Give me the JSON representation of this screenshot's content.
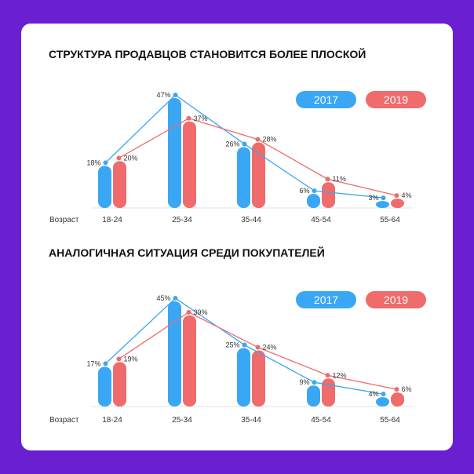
{
  "colors": {
    "background": "#6a1fd1",
    "card": "#ffffff",
    "series_2017": "#3aa7f5",
    "series_2019": "#f06b6b"
  },
  "chart_data": [
    {
      "type": "bar",
      "title": "СТРУКТУРА ПРОДАВЦОВ СТАНОВИТСЯ БОЛЕЕ ПЛОСКОЙ",
      "xlabel": "Возраст",
      "categories": [
        "18-24",
        "25-34",
        "35-44",
        "45-54",
        "55-64"
      ],
      "legend_position": "top-right",
      "grid": false,
      "ylim": [
        0,
        47
      ],
      "series": [
        {
          "name": "2017",
          "color": "#3aa7f5",
          "values": [
            18,
            47,
            26,
            6,
            3
          ],
          "labels": [
            "18%",
            "47%",
            "26%",
            "6%",
            "3%"
          ]
        },
        {
          "name": "2019",
          "color": "#f06b6b",
          "values": [
            20,
            37,
            28,
            11,
            4
          ],
          "labels": [
            "20%",
            "37%",
            "28%",
            "11%",
            "4%"
          ]
        }
      ]
    },
    {
      "type": "bar",
      "title": "АНАЛОГИЧНАЯ СИТУАЦИЯ СРЕДИ ПОКУПАТЕЛЕЙ",
      "xlabel": "Возраст",
      "categories": [
        "18-24",
        "25-34",
        "35-44",
        "45-54",
        "55-64"
      ],
      "legend_position": "top-right",
      "grid": false,
      "ylim": [
        0,
        45
      ],
      "series": [
        {
          "name": "2017",
          "color": "#3aa7f5",
          "values": [
            17,
            45,
            25,
            9,
            4
          ],
          "labels": [
            "17%",
            "45%",
            "25%",
            "9%",
            "4%"
          ]
        },
        {
          "name": "2019",
          "color": "#f06b6b",
          "values": [
            19,
            39,
            24,
            12,
            6
          ],
          "labels": [
            "19%",
            "39%",
            "24%",
            "12%",
            "6%"
          ]
        }
      ]
    }
  ]
}
